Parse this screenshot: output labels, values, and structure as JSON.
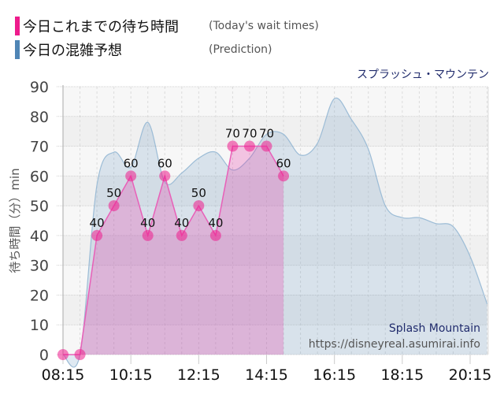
{
  "legend": {
    "items": [
      {
        "label": "今日これまでの待ち時間",
        "sublabel": "(Today's wait times)",
        "color": "#ee1b8c"
      },
      {
        "label": "今日の混雑予想",
        "sublabel": "(Prediction)",
        "color": "#4f85b5"
      }
    ]
  },
  "attraction": {
    "name_jp": "スプラッシュ・マウンテン",
    "name_en": "Splash Mountain"
  },
  "watermark": "https://disneyreal.asumirai.info",
  "chart_data": {
    "type": "area",
    "title": "スプラッシュ・マウンテン",
    "xlabel": "",
    "ylabel": "待ち時間（分）min",
    "ylim": [
      0,
      90
    ],
    "yticks": [
      0,
      10,
      20,
      30,
      40,
      50,
      60,
      70,
      80,
      90
    ],
    "xticks": [
      "08:15",
      "10:15",
      "12:15",
      "14:15",
      "16:15",
      "18:15",
      "20:15"
    ],
    "grid": true,
    "legend_position": "top-left",
    "series": [
      {
        "name": "今日これまでの待ち時間 (Today's wait times)",
        "color": "#ee1b8c",
        "x": [
          "08:15",
          "08:45",
          "09:15",
          "09:45",
          "10:15",
          "10:45",
          "11:15",
          "11:45",
          "12:15",
          "12:45",
          "13:15",
          "13:45",
          "14:15",
          "14:45"
        ],
        "values": [
          0,
          0,
          40,
          50,
          60,
          40,
          60,
          40,
          50,
          40,
          70,
          70,
          70,
          60
        ],
        "labels_shown": [
          null,
          null,
          40,
          50,
          60,
          40,
          60,
          40,
          50,
          40,
          70,
          70,
          70,
          60
        ]
      },
      {
        "name": "今日の混雑予想 (Prediction)",
        "color": "#4f85b5",
        "x": [
          "08:15",
          "08:45",
          "09:15",
          "09:45",
          "10:15",
          "10:45",
          "11:15",
          "11:45",
          "12:15",
          "12:45",
          "13:15",
          "13:45",
          "14:15",
          "14:45",
          "15:15",
          "15:45",
          "16:15",
          "16:45",
          "17:15",
          "17:45",
          "18:15",
          "18:45",
          "19:15",
          "19:45",
          "20:15",
          "20:45"
        ],
        "values": [
          0,
          0,
          57,
          68,
          63,
          78,
          58,
          61,
          66,
          68,
          62,
          66,
          74,
          74,
          67,
          71,
          86,
          79,
          69,
          50,
          46,
          46,
          44,
          43,
          33,
          17
        ]
      }
    ]
  }
}
